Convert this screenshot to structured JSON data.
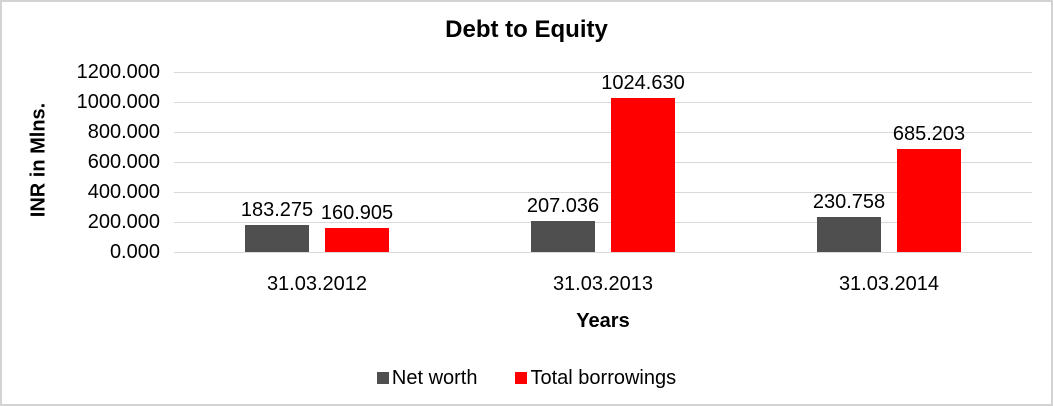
{
  "chart_data": {
    "type": "bar",
    "title": "Debt to Equity",
    "xlabel": "Years",
    "ylabel": "INR in Mlns.",
    "categories": [
      "31.03.2012",
      "31.03.2013",
      "31.03.2014"
    ],
    "series": [
      {
        "name": "Net worth",
        "color": "#4F4F4F",
        "values": [
          183.275,
          207.036,
          230.758
        ]
      },
      {
        "name": "Total borrowings",
        "color": "#FF0000",
        "values": [
          160.905,
          1024.63,
          685.203
        ]
      }
    ],
    "ylim": [
      0,
      1200
    ],
    "y_tick_step": 200,
    "y_tick_labels": [
      "0.000",
      "200.000",
      "400.000",
      "600.000",
      "800.000",
      "1000.000",
      "1200.000"
    ],
    "value_label_decimals": 3,
    "grid": true,
    "legend_position": "bottom",
    "colors": {
      "gridline": "#D9D9D9",
      "text": "#000000",
      "chart_border": "#D3D3D3",
      "background": "#FFFFFF"
    }
  }
}
